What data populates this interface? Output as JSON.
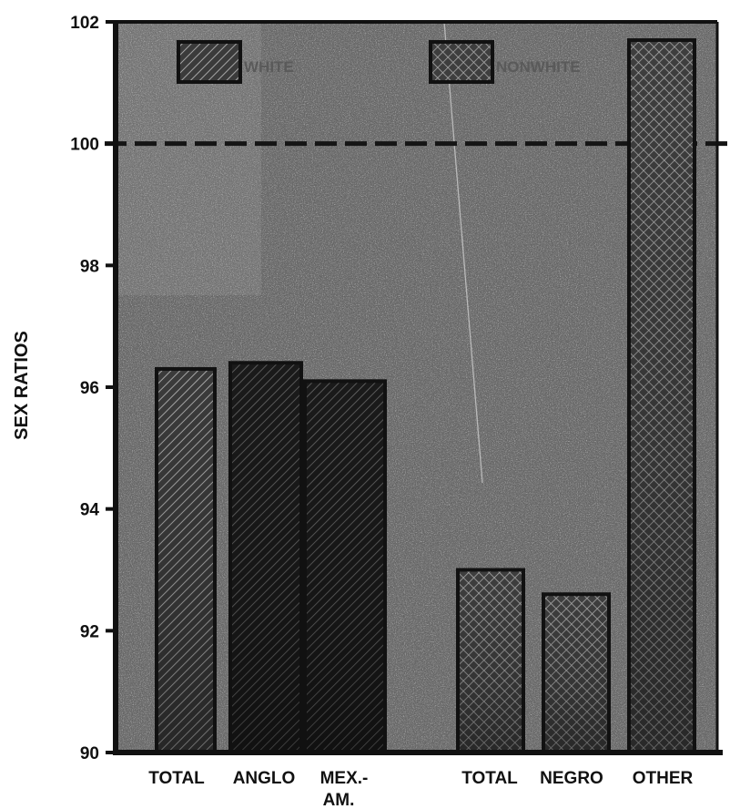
{
  "chart_data": {
    "type": "bar",
    "ylabel": "SEX RATIOS",
    "xlabel": "",
    "title": "",
    "ylim": [
      90,
      102
    ],
    "yticks": [
      90,
      92,
      94,
      96,
      98,
      100,
      102
    ],
    "grid": false,
    "reference_line": {
      "y": 100,
      "style": "dashed"
    },
    "legend": {
      "placement": "top",
      "items": [
        {
          "label": "WHITE",
          "pattern": "diagonal-hatch"
        },
        {
          "label": "NONWHITE",
          "pattern": "cross-hatch"
        }
      ]
    },
    "bars": [
      {
        "label": "TOTAL",
        "group": "WHITE",
        "value": 96.3
      },
      {
        "label": "ANGLO",
        "group": "WHITE",
        "value": 96.4
      },
      {
        "label": "MEX.-AM.",
        "group": "WHITE",
        "value": 96.1
      },
      {
        "label": "TOTAL",
        "group": "NONWHITE",
        "value": 93.0
      },
      {
        "label": "NEGRO",
        "group": "NONWHITE",
        "value": 92.6
      },
      {
        "label": "OTHER",
        "group": "NONWHITE",
        "value": 101.7
      }
    ],
    "category_labels": [
      {
        "line1": "TOTAL",
        "line2": ""
      },
      {
        "line1": "ANGLO",
        "line2": ""
      },
      {
        "line1": "MEX.-",
        "line2": "AM."
      },
      {
        "line1": "TOTAL",
        "line2": ""
      },
      {
        "line1": "NEGRO",
        "line2": ""
      },
      {
        "line1": "OTHER",
        "line2": ""
      }
    ]
  },
  "colors": {
    "background": "#6e6e6e",
    "speckle_light": "#c8c8c8",
    "speckle_dark": "#2a2a2a",
    "bar_fill": "#4a4a4a",
    "bar_edge": "#111111",
    "white_bar_dark": "#1e1e1e",
    "hatch_light": "#a6a6a6",
    "axis": "#111111",
    "ref_line": "#151515"
  }
}
